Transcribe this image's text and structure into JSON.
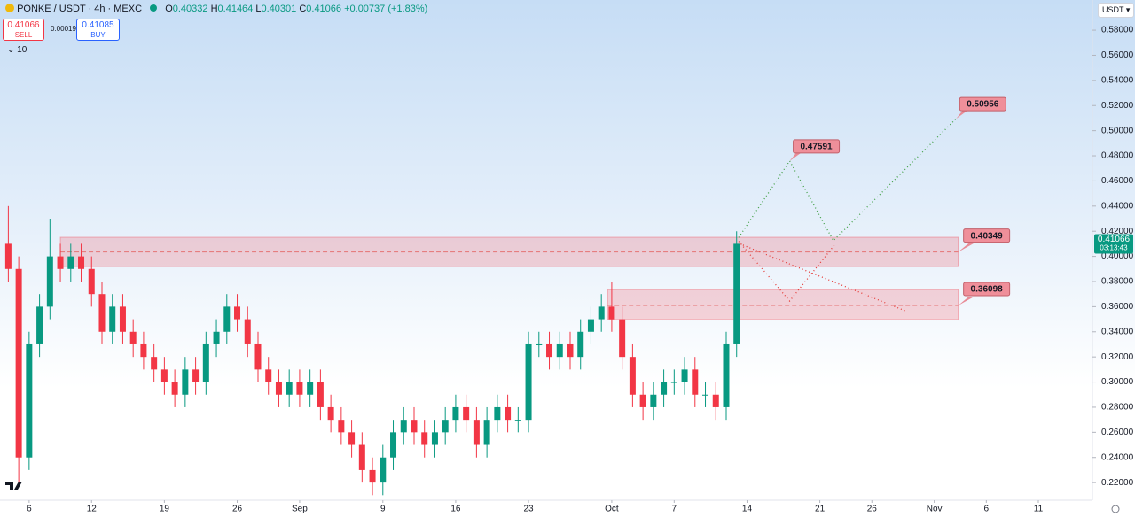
{
  "chart_data": {
    "type": "candlestick",
    "title": "PONKE / USDT · 4h · MEXC",
    "legend": {
      "o": "O",
      "open": 0.40332,
      "h": "H",
      "high": 0.41464,
      "l": "L",
      "low": 0.40301,
      "c": "C",
      "close": 0.41066,
      "change": "+0.00737",
      "change_pct": "(+1.83%)"
    },
    "trade": {
      "sell": 0.41066,
      "sell_label": "SELL",
      "spread": 0.00019,
      "buy": 0.41085,
      "buy_label": "BUY",
      "indicators": 10
    },
    "currency": "USDT",
    "current_price": 0.41066,
    "countdown": "03:13:43",
    "up_color": "#089981",
    "down_color": "#f23645",
    "xlim": [
      3.2,
      108.2
    ],
    "xticks": [
      {
        "value": 6,
        "label": "6"
      },
      {
        "value": 12,
        "label": "12"
      },
      {
        "value": 19,
        "label": "19"
      },
      {
        "value": 26,
        "label": "26"
      },
      {
        "value": 32,
        "label": "Sep"
      },
      {
        "value": 40,
        "label": "9"
      },
      {
        "value": 47,
        "label": "16"
      },
      {
        "value": 54,
        "label": "23"
      },
      {
        "value": 62,
        "label": "Oct"
      },
      {
        "value": 68,
        "label": "7"
      },
      {
        "value": 75,
        "label": "14"
      },
      {
        "value": 82,
        "label": "21"
      },
      {
        "value": 87,
        "label": "26"
      },
      {
        "value": 93,
        "label": "Nov"
      },
      {
        "value": 98,
        "label": "6"
      },
      {
        "value": 103,
        "label": "11"
      }
    ],
    "ylim": [
      0.206,
      0.604
    ],
    "yticks": [
      {
        "value": 0.22,
        "label": "0.22000"
      },
      {
        "value": 0.24,
        "label": "0.24000"
      },
      {
        "value": 0.26,
        "label": "0.26000"
      },
      {
        "value": 0.28,
        "label": "0.28000"
      },
      {
        "value": 0.3,
        "label": "0.30000"
      },
      {
        "value": 0.32,
        "label": "0.32000"
      },
      {
        "value": 0.34,
        "label": "0.34000"
      },
      {
        "value": 0.36,
        "label": "0.36000"
      },
      {
        "value": 0.38,
        "label": "0.38000"
      },
      {
        "value": 0.4,
        "label": "0.40000"
      },
      {
        "value": 0.42,
        "label": "0.42000"
      },
      {
        "value": 0.44,
        "label": "0.44000"
      },
      {
        "value": 0.46,
        "label": "0.46000"
      },
      {
        "value": 0.48,
        "label": "0.48000"
      },
      {
        "value": 0.5,
        "label": "0.50000"
      },
      {
        "value": 0.52,
        "label": "0.52000"
      },
      {
        "value": 0.54,
        "label": "0.54000"
      },
      {
        "value": 0.56,
        "label": "0.56000"
      },
      {
        "value": 0.58,
        "label": "0.58000"
      }
    ],
    "x": [
      4,
      5,
      6,
      7,
      8,
      9,
      10,
      11,
      12,
      13,
      14,
      15,
      16,
      17,
      18,
      19,
      20,
      21,
      22,
      23,
      24,
      25,
      26,
      27,
      28,
      29,
      30,
      31,
      32,
      33,
      34,
      35,
      36,
      37,
      38,
      39,
      40,
      41,
      42,
      43,
      44,
      45,
      46,
      47,
      48,
      49,
      50,
      51,
      52,
      53,
      54,
      55,
      56,
      57,
      58,
      59,
      60,
      61,
      62,
      63,
      64,
      65,
      66,
      67,
      68,
      69,
      70,
      71,
      72,
      73,
      74
    ],
    "open": [
      0.41,
      0.39,
      0.24,
      0.33,
      0.36,
      0.4,
      0.39,
      0.4,
      0.39,
      0.37,
      0.34,
      0.36,
      0.34,
      0.33,
      0.32,
      0.31,
      0.3,
      0.29,
      0.31,
      0.3,
      0.33,
      0.34,
      0.36,
      0.35,
      0.33,
      0.31,
      0.3,
      0.29,
      0.3,
      0.29,
      0.3,
      0.28,
      0.27,
      0.26,
      0.25,
      0.23,
      0.22,
      0.24,
      0.26,
      0.27,
      0.26,
      0.25,
      0.26,
      0.27,
      0.28,
      0.27,
      0.25,
      0.27,
      0.28,
      0.27,
      0.27,
      0.33,
      0.33,
      0.32,
      0.33,
      0.32,
      0.34,
      0.35,
      0.36,
      0.35,
      0.32,
      0.29,
      0.28,
      0.29,
      0.3,
      0.3,
      0.31,
      0.29,
      0.29,
      0.28,
      0.33
    ],
    "high": [
      0.44,
      0.4,
      0.34,
      0.37,
      0.43,
      0.41,
      0.41,
      0.41,
      0.4,
      0.38,
      0.37,
      0.37,
      0.35,
      0.34,
      0.33,
      0.32,
      0.31,
      0.32,
      0.32,
      0.34,
      0.35,
      0.37,
      0.37,
      0.36,
      0.34,
      0.32,
      0.31,
      0.31,
      0.31,
      0.31,
      0.31,
      0.29,
      0.28,
      0.27,
      0.26,
      0.24,
      0.25,
      0.27,
      0.28,
      0.28,
      0.27,
      0.27,
      0.28,
      0.29,
      0.29,
      0.28,
      0.28,
      0.29,
      0.29,
      0.28,
      0.34,
      0.34,
      0.34,
      0.34,
      0.34,
      0.35,
      0.36,
      0.37,
      0.38,
      0.36,
      0.33,
      0.3,
      0.3,
      0.31,
      0.31,
      0.32,
      0.32,
      0.3,
      0.3,
      0.34,
      0.42
    ],
    "low": [
      0.38,
      0.22,
      0.23,
      0.32,
      0.35,
      0.38,
      0.38,
      0.38,
      0.36,
      0.33,
      0.33,
      0.33,
      0.32,
      0.31,
      0.3,
      0.29,
      0.28,
      0.28,
      0.29,
      0.29,
      0.32,
      0.33,
      0.34,
      0.32,
      0.3,
      0.29,
      0.28,
      0.28,
      0.28,
      0.28,
      0.27,
      0.26,
      0.25,
      0.24,
      0.22,
      0.21,
      0.21,
      0.23,
      0.25,
      0.25,
      0.24,
      0.24,
      0.25,
      0.26,
      0.26,
      0.24,
      0.24,
      0.26,
      0.26,
      0.26,
      0.26,
      0.32,
      0.31,
      0.31,
      0.31,
      0.31,
      0.33,
      0.34,
      0.34,
      0.31,
      0.28,
      0.27,
      0.27,
      0.28,
      0.29,
      0.29,
      0.28,
      0.28,
      0.27,
      0.27,
      0.32
    ],
    "close": [
      0.39,
      0.24,
      0.33,
      0.36,
      0.4,
      0.39,
      0.4,
      0.39,
      0.37,
      0.34,
      0.36,
      0.34,
      0.33,
      0.32,
      0.31,
      0.3,
      0.29,
      0.31,
      0.3,
      0.33,
      0.34,
      0.36,
      0.35,
      0.33,
      0.31,
      0.3,
      0.29,
      0.3,
      0.29,
      0.3,
      0.28,
      0.27,
      0.26,
      0.25,
      0.23,
      0.22,
      0.24,
      0.26,
      0.27,
      0.26,
      0.25,
      0.26,
      0.27,
      0.28,
      0.27,
      0.25,
      0.27,
      0.28,
      0.27,
      0.27,
      0.33,
      0.33,
      0.32,
      0.33,
      0.32,
      0.34,
      0.35,
      0.36,
      0.35,
      0.32,
      0.29,
      0.28,
      0.29,
      0.3,
      0.3,
      0.31,
      0.29,
      0.29,
      0.28,
      0.33,
      0.41
    ],
    "zones": [
      {
        "x0": 9.0,
        "x1": 95.3,
        "low": 0.3919,
        "high": 0.4152,
        "level": 0.40349
      },
      {
        "x0": 61.6,
        "x1": 95.3,
        "low": 0.3497,
        "high": 0.3736,
        "level": 0.36098
      }
    ],
    "projections": [
      {
        "color": "#43a047",
        "points": [
          [
            74.2,
            0.415
          ],
          [
            79.1,
            0.47591
          ],
          [
            83.3,
            0.4125
          ],
          [
            95.1,
            0.50956
          ]
        ]
      },
      {
        "color": "#e53935",
        "points": [
          [
            74.2,
            0.412
          ],
          [
            79.1,
            0.3645
          ],
          [
            83.5,
            0.41
          ]
        ]
      },
      {
        "color": "#e53935",
        "points": [
          [
            74.3,
            0.41
          ],
          [
            90.2,
            0.3567
          ]
        ]
      }
    ]
  }
}
